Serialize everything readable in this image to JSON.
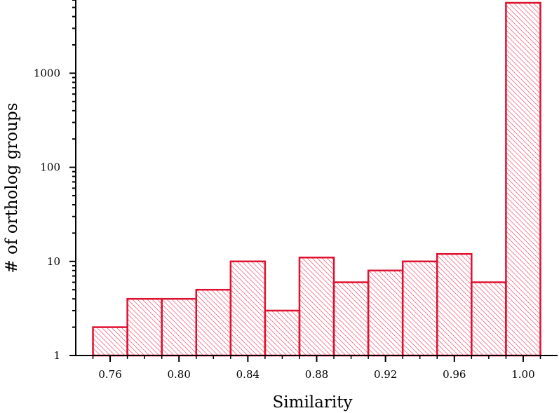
{
  "chart_data": {
    "type": "bar",
    "title": "",
    "xlabel": "Similarity",
    "ylabel": "# of ortholog groups",
    "y_scale": "log",
    "ylim": [
      1,
      6000
    ],
    "xlim": [
      0.74,
      1.02
    ],
    "grid": false,
    "legend": "none",
    "bar_color": "#e0102f",
    "hatch_color": "#ee6f84",
    "x_tick_values": [
      0.76,
      0.8,
      0.84,
      0.88,
      0.92,
      0.96,
      1.0
    ],
    "x_tick_labels": [
      "0.76",
      "0.80",
      "0.84",
      "0.88",
      "0.92",
      "0.96",
      "1.00"
    ],
    "y_tick_values": [
      1,
      10,
      100,
      1000
    ],
    "y_tick_labels": [
      "1",
      "10",
      "100",
      "1000"
    ],
    "bins": [
      {
        "start": 0.75,
        "end": 0.77,
        "count": 2
      },
      {
        "start": 0.77,
        "end": 0.79,
        "count": 4
      },
      {
        "start": 0.79,
        "end": 0.81,
        "count": 4
      },
      {
        "start": 0.81,
        "end": 0.83,
        "count": 5
      },
      {
        "start": 0.83,
        "end": 0.85,
        "count": 10
      },
      {
        "start": 0.85,
        "end": 0.87,
        "count": 3
      },
      {
        "start": 0.87,
        "end": 0.89,
        "count": 11
      },
      {
        "start": 0.89,
        "end": 0.91,
        "count": 6
      },
      {
        "start": 0.91,
        "end": 0.93,
        "count": 8
      },
      {
        "start": 0.93,
        "end": 0.95,
        "count": 10
      },
      {
        "start": 0.95,
        "end": 0.97,
        "count": 12
      },
      {
        "start": 0.97,
        "end": 0.99,
        "count": 6
      },
      {
        "start": 0.99,
        "end": 1.01,
        "count": 5600
      }
    ]
  }
}
